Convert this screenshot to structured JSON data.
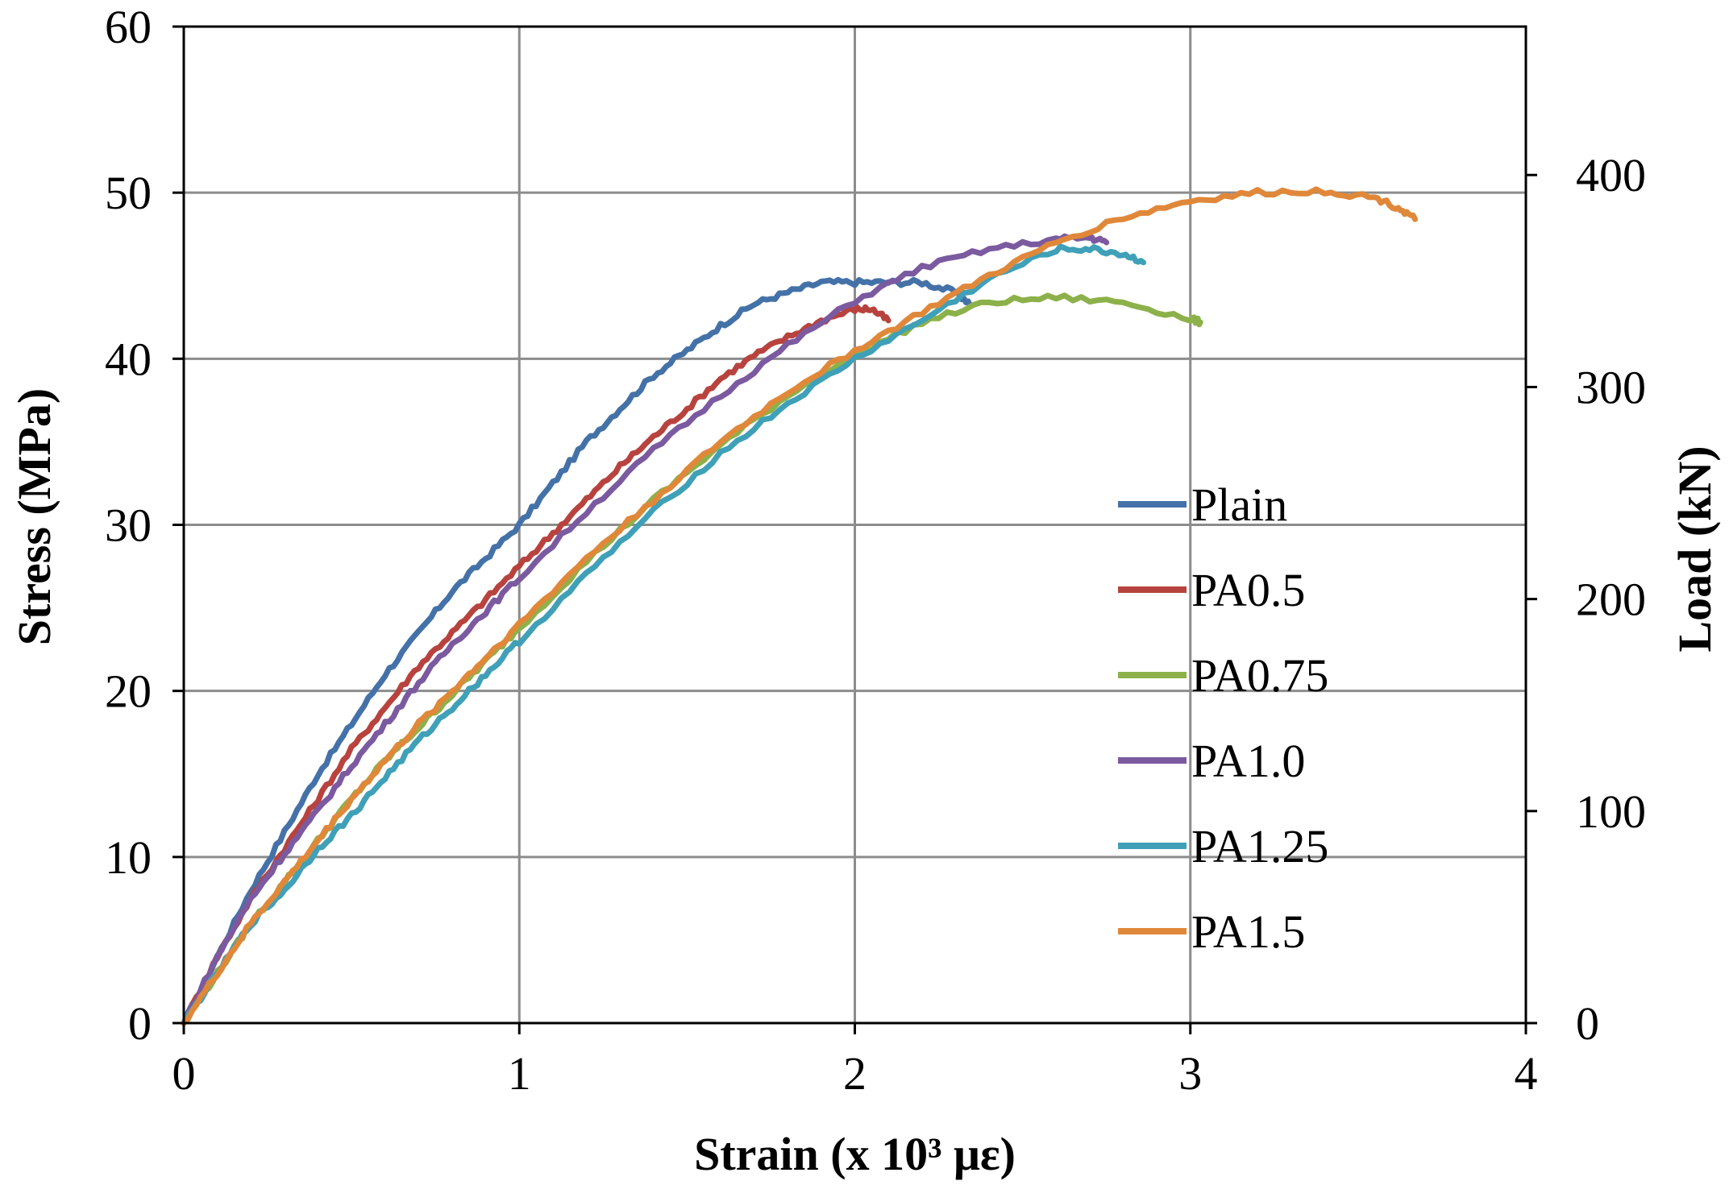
{
  "chart_data": {
    "type": "line",
    "title": "",
    "xlabel": "Strain (x 10³ με)",
    "ylabel": "Stress (MPa)",
    "y2label": "Load (kN)",
    "xlim": [
      0,
      4
    ],
    "ylim": [
      0,
      60
    ],
    "y2lim": [
      0,
      470
    ],
    "xticks": [
      0,
      1,
      2,
      3,
      4
    ],
    "yticks": [
      0,
      10,
      20,
      30,
      40,
      50,
      60
    ],
    "y2ticks": [
      0,
      100,
      200,
      300,
      400
    ],
    "grid": true,
    "legend_position": "center-right",
    "series": [
      {
        "name": "Plain",
        "color": "#4472a8",
        "x": [
          0,
          0.1,
          0.2,
          0.3,
          0.4,
          0.5,
          0.6,
          0.7,
          0.8,
          0.9,
          1.0,
          1.1,
          1.2,
          1.3,
          1.4,
          1.5,
          1.6,
          1.7,
          1.8,
          1.9,
          2.0,
          2.1,
          2.2,
          2.3,
          2.35
        ],
        "y": [
          0,
          4,
          8,
          11.5,
          15,
          18,
          21,
          23.5,
          26,
          28,
          30,
          32.5,
          35,
          37,
          39,
          40.5,
          42,
          43.3,
          44,
          44.6,
          44.6,
          44.6,
          44.6,
          44.0,
          43.2
        ]
      },
      {
        "name": "PA0.5",
        "color": "#b8433e",
        "x": [
          0,
          0.1,
          0.2,
          0.3,
          0.4,
          0.5,
          0.6,
          0.7,
          0.8,
          0.9,
          1.0,
          1.1,
          1.2,
          1.3,
          1.4,
          1.5,
          1.6,
          1.7,
          1.8,
          1.9,
          2.0,
          2.05,
          2.1
        ],
        "y": [
          0,
          4,
          7.5,
          10.5,
          13.5,
          16.5,
          19,
          21.5,
          23.5,
          25.5,
          27.5,
          29.5,
          31.5,
          33.5,
          35.3,
          37,
          38.8,
          40.2,
          41.3,
          42.3,
          43.0,
          43.0,
          42.3
        ]
      },
      {
        "name": "PA0.75",
        "color": "#8db14a",
        "x": [
          0,
          0.1,
          0.2,
          0.3,
          0.4,
          0.5,
          0.6,
          0.7,
          0.8,
          0.9,
          1.0,
          1.2,
          1.4,
          1.6,
          1.8,
          2.0,
          2.2,
          2.4,
          2.6,
          2.8,
          3.0,
          3.03
        ],
        "y": [
          0,
          3,
          6,
          8.5,
          11,
          13.5,
          15.8,
          17.8,
          19.8,
          21.8,
          23.8,
          27.8,
          31.5,
          34.8,
          37.8,
          40.2,
          42.2,
          43.4,
          43.7,
          43.4,
          42.4,
          42.2
        ]
      },
      {
        "name": "PA1.0",
        "color": "#7b5aa0",
        "x": [
          0,
          0.1,
          0.2,
          0.3,
          0.4,
          0.5,
          0.6,
          0.7,
          0.8,
          0.9,
          1.0,
          1.2,
          1.4,
          1.6,
          1.8,
          2.0,
          2.2,
          2.4,
          2.6,
          2.7,
          2.75
        ],
        "y": [
          0,
          4,
          7.5,
          10.2,
          12.8,
          15.5,
          18,
          20.5,
          22.8,
          24.8,
          26.8,
          30.8,
          34.5,
          37.8,
          40.8,
          43.5,
          45.5,
          46.6,
          47.2,
          47.3,
          47.0
        ]
      },
      {
        "name": "PA1.25",
        "color": "#3fa0b8",
        "x": [
          0,
          0.1,
          0.2,
          0.3,
          0.4,
          0.5,
          0.6,
          0.7,
          0.8,
          0.9,
          1.0,
          1.2,
          1.4,
          1.6,
          1.8,
          2.0,
          2.2,
          2.4,
          2.6,
          2.7,
          2.8,
          2.86
        ],
        "y": [
          0,
          3,
          6,
          8,
          10.5,
          12.5,
          14.8,
          17,
          19,
          21,
          23,
          27,
          30.8,
          34.3,
          37.3,
          40,
          42.3,
          44.8,
          46.6,
          46.6,
          46.3,
          45.8
        ]
      },
      {
        "name": "PA1.5",
        "color": "#e0883a",
        "x": [
          0,
          0.1,
          0.2,
          0.3,
          0.4,
          0.5,
          0.6,
          0.7,
          0.8,
          0.9,
          1.0,
          1.2,
          1.4,
          1.6,
          1.8,
          2.0,
          2.2,
          2.4,
          2.6,
          2.8,
          3.0,
          3.2,
          3.4,
          3.55,
          3.62,
          3.67
        ],
        "y": [
          0,
          3,
          6,
          8.5,
          11,
          13.5,
          15.8,
          18,
          20,
          22,
          24,
          28,
          31.5,
          35,
          38,
          40.5,
          42.8,
          45,
          47,
          48.5,
          49.5,
          50.0,
          50.1,
          49.7,
          49.1,
          48.4
        ]
      }
    ]
  }
}
